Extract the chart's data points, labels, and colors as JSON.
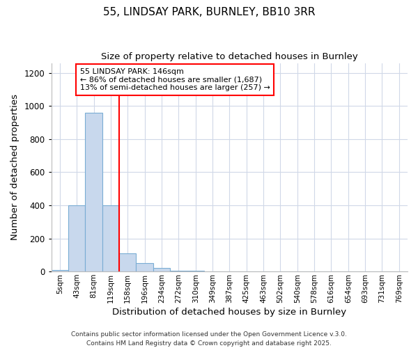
{
  "title1": "55, LINDSAY PARK, BURNLEY, BB10 3RR",
  "title2": "Size of property relative to detached houses in Burnley",
  "xlabel": "Distribution of detached houses by size in Burnley",
  "ylabel": "Number of detached properties",
  "categories": [
    "5sqm",
    "43sqm",
    "81sqm",
    "119sqm",
    "158sqm",
    "196sqm",
    "234sqm",
    "272sqm",
    "310sqm",
    "349sqm",
    "387sqm",
    "425sqm",
    "463sqm",
    "502sqm",
    "540sqm",
    "578sqm",
    "616sqm",
    "654sqm",
    "693sqm",
    "731sqm",
    "769sqm"
  ],
  "values": [
    10,
    400,
    960,
    400,
    110,
    50,
    20,
    5,
    3,
    0,
    0,
    0,
    0,
    0,
    0,
    0,
    0,
    0,
    0,
    0,
    0
  ],
  "bar_color": "#c8d8ed",
  "bar_edge_color": "#7aadd4",
  "red_line_index": 3,
  "annotation_title": "55 LINDSAY PARK: 146sqm",
  "annotation_line1": "← 86% of detached houses are smaller (1,687)",
  "annotation_line2": "13% of semi-detached houses are larger (257) →",
  "ylim": [
    0,
    1260
  ],
  "yticks": [
    0,
    200,
    400,
    600,
    800,
    1000,
    1200
  ],
  "footer1": "Contains HM Land Registry data © Crown copyright and database right 2025.",
  "footer2": "Contains public sector information licensed under the Open Government Licence v.3.0.",
  "bg_color": "#ffffff",
  "plot_bg_color": "#ffffff",
  "grid_color": "#d0d8e8"
}
